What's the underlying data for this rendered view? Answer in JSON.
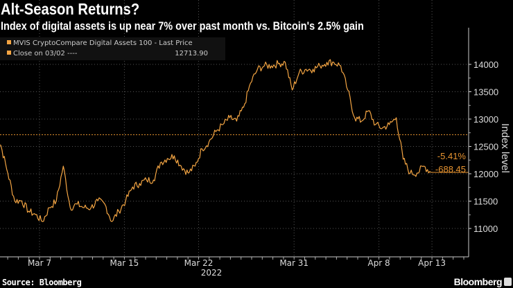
{
  "header": {
    "title": "Alt-Season Returns?",
    "subtitle": "Index of digital assets is up near 7% over past month vs. Bitcoin's 2.5% gain"
  },
  "footer": {
    "source": "Source: Bloomberg",
    "logo": "Bloomberg"
  },
  "colors": {
    "line": "#f4a543",
    "annotation": "#e89430",
    "reference": "#e89430",
    "grid": "#555555"
  },
  "chart_data": {
    "type": "line",
    "title": "Alt-Season Returns?",
    "ylabel": "Index level",
    "xlabel": "2022",
    "ylim": [
      10700,
      14450
    ],
    "yticks": [
      11000,
      11500,
      12000,
      12500,
      13000,
      13500,
      14000
    ],
    "ytick_labels": [
      "11000",
      "11500",
      "12000",
      "12500",
      "13000",
      "13500",
      "14000"
    ],
    "xticks": [
      {
        "label": "Mar 7",
        "day": 4
      },
      {
        "label": "Mar 15",
        "day": 12
      },
      {
        "label": "Mar 22",
        "day": 19
      },
      {
        "label": "Mar 31",
        "day": 28
      },
      {
        "label": "Apr 8",
        "day": 36
      },
      {
        "label": "Apr 13",
        "day": 41
      }
    ],
    "x_start_day": -0.3,
    "x_step_days": 0.654,
    "legend": {
      "series_label": "MVIS CryptoCompare Digital Assets 100 - Last Price",
      "reference_label": "Close on 03/02 ----",
      "reference_value": "12713.90",
      "placement": "top-left"
    },
    "reference_line": 12713.9,
    "series": [
      {
        "name": "MVIS CryptoCompare Digital Assets 100 - Last Price",
        "values": [
          12646,
          12519,
          12013,
          11506,
          11506,
          11316,
          11253,
          11127,
          11380,
          11506,
          12139,
          11380,
          11443,
          11380,
          11380,
          11506,
          11443,
          11127,
          11316,
          11506,
          11760,
          11823,
          11886,
          11886,
          12203,
          12280,
          12329,
          12139,
          12013,
          12139,
          12456,
          12582,
          12772,
          12899,
          13025,
          12962,
          13215,
          13658,
          13911,
          13975,
          13975,
          14013,
          14038,
          13532,
          13848,
          13911,
          13911,
          13975,
          14038,
          14038,
          13975,
          13532,
          13025,
          12962,
          13152,
          12899,
          12835,
          12899,
          13025,
          12266,
          12013,
          12013,
          12139,
          12025.45
        ]
      }
    ],
    "annotations": {
      "pct_change": "-5.41%",
      "abs_change": "-688.45",
      "last_value": 12025.45
    }
  }
}
